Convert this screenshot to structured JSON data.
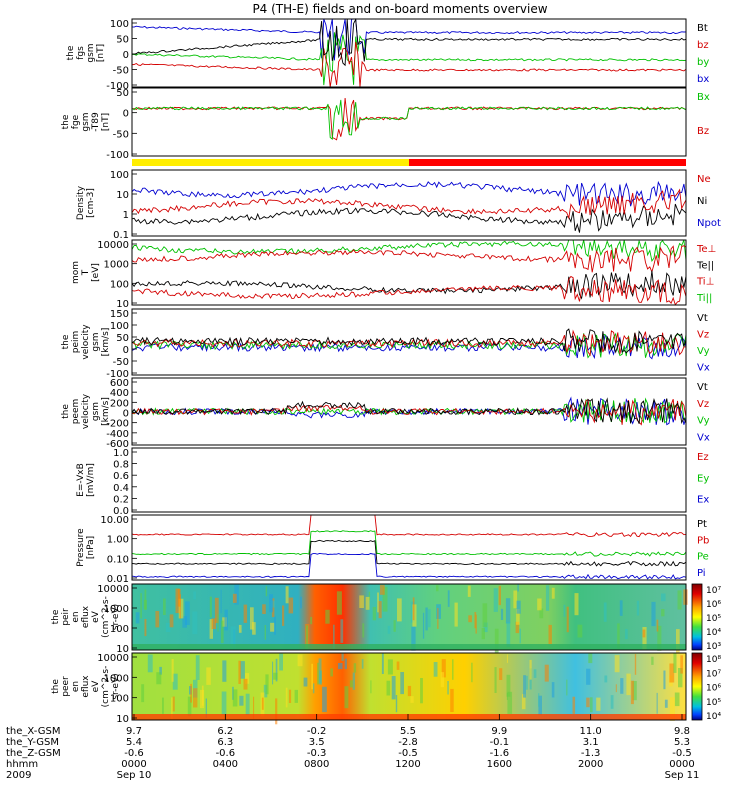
{
  "title": "P4 (TH-E) fields and on-board moments overview",
  "chart_data": [
    {
      "type": "line",
      "ylabel": [
        "the",
        "fgs",
        "gsm",
        "[nT]"
      ],
      "ylim": [
        -100,
        100
      ],
      "yticks": [
        "100",
        "50",
        "0",
        "-50",
        "-100"
      ],
      "legend": [
        {
          "name": "Bt",
          "color": "#000000"
        },
        {
          "name": "bz",
          "color": "#d40000"
        },
        {
          "name": "by",
          "color": "#00c000"
        },
        {
          "name": "bx",
          "color": "#0000d0"
        }
      ]
    },
    {
      "type": "line",
      "ylabel": [
        "the",
        "fge",
        "gsm",
        "-T89",
        "[nT]"
      ],
      "ylim": [
        -120,
        60
      ],
      "yticks": [
        "50",
        "0",
        "-50",
        "-100"
      ],
      "legend": [
        {
          "name": "Bx",
          "color": "#00c000"
        },
        {
          "name": "Bz",
          "color": "#d40000"
        }
      ]
    },
    {
      "type": "line",
      "ylabel": [
        "Density",
        "[cm-3]"
      ],
      "scale": "log",
      "yticks": [
        "100",
        "10",
        "1",
        "0.1"
      ],
      "legend": [
        {
          "name": "Ne",
          "color": "#d40000"
        },
        {
          "name": "Ni",
          "color": "#000000"
        },
        {
          "name": "Npot",
          "color": "#0000d0"
        }
      ]
    },
    {
      "type": "line",
      "ylabel": [
        "mom",
        "T",
        "[eV]"
      ],
      "scale": "log",
      "yticks": [
        "10000",
        "1000",
        "100",
        "10"
      ],
      "legend": [
        {
          "name": "Te⊥",
          "color": "#d40000"
        },
        {
          "name": "Te||",
          "color": "#000000"
        },
        {
          "name": "Ti⊥",
          "color": "#d40000"
        },
        {
          "name": "Ti||",
          "color": "#00c000"
        }
      ]
    },
    {
      "type": "line",
      "ylabel": [
        "the",
        "peim",
        "velocity",
        "gsm",
        "[km/s]"
      ],
      "ylim": [
        -100,
        150
      ],
      "yticks": [
        "150",
        "100",
        "50",
        "0",
        "-50",
        "-100"
      ],
      "legend": [
        {
          "name": "Vt",
          "color": "#000000"
        },
        {
          "name": "Vz",
          "color": "#d40000"
        },
        {
          "name": "Vy",
          "color": "#00c000"
        },
        {
          "name": "Vx",
          "color": "#0000d0"
        }
      ]
    },
    {
      "type": "line",
      "ylabel": [
        "the",
        "peem",
        "velocity",
        "gsm",
        "[km/s]"
      ],
      "ylim": [
        -600,
        600
      ],
      "yticks": [
        "600",
        "400",
        "200",
        "0",
        "-200",
        "-400",
        "-600"
      ],
      "legend": [
        {
          "name": "Vt",
          "color": "#000000"
        },
        {
          "name": "Vz",
          "color": "#d40000"
        },
        {
          "name": "Vy",
          "color": "#00c000"
        },
        {
          "name": "Vx",
          "color": "#0000d0"
        }
      ]
    },
    {
      "type": "line",
      "ylabel": [
        "E=-VxB",
        "[mV/m]"
      ],
      "ylim": [
        0,
        1
      ],
      "yticks": [
        "1.0",
        "0.8",
        "0.6",
        "0.4",
        "0.2",
        "0.0"
      ],
      "legend": [
        {
          "name": "Ez",
          "color": "#d40000"
        },
        {
          "name": "Ey",
          "color": "#00c000"
        },
        {
          "name": "Ex",
          "color": "#0000d0"
        }
      ]
    },
    {
      "type": "line",
      "ylabel": [
        "Pressure",
        "[nPa]"
      ],
      "scale": "log",
      "yticks": [
        "10.00",
        "1.00",
        "0.10",
        "0.01"
      ],
      "legend": [
        {
          "name": "Pt",
          "color": "#000000"
        },
        {
          "name": "Pb",
          "color": "#d40000"
        },
        {
          "name": "Pe",
          "color": "#00c000"
        },
        {
          "name": "Pi",
          "color": "#0000d0"
        }
      ]
    },
    {
      "type": "heatmap",
      "ylabel": [
        "the",
        "peir",
        "en",
        "eflux",
        "eV",
        "(cm^2-s-",
        "sr-eV)"
      ],
      "scale": "log",
      "yticks": [
        "10000",
        "1000",
        "100",
        "10"
      ],
      "colorbar": [
        "10⁷",
        "10⁶",
        "10⁵",
        "10⁴",
        "10³"
      ]
    },
    {
      "type": "heatmap",
      "ylabel": [
        "the",
        "peer",
        "en",
        "eflux",
        "eV",
        "(cm^2-s-",
        "sr-eV)"
      ],
      "scale": "log",
      "yticks": [
        "10000",
        "1000",
        "100",
        "10"
      ],
      "colorbar": [
        "10⁸",
        "10⁷",
        "10⁶",
        "10⁵",
        "10⁴"
      ]
    }
  ],
  "xaxis": {
    "row_labels": [
      "the_X-GSM",
      "the_Y-GSM",
      "the_Z-GSM",
      "hhmm",
      "2009"
    ],
    "columns": [
      [
        "9.7",
        "5.4",
        "-0.6",
        "0000",
        "Sep 10"
      ],
      [
        "6.2",
        "6.3",
        "-0.6",
        "0400",
        ""
      ],
      [
        "-0.2",
        "3.5",
        "-0.3",
        "0800",
        ""
      ],
      [
        "5.5",
        "-2.8",
        "-0.5",
        "1200",
        ""
      ],
      [
        "9.9",
        "-0.1",
        "-1.6",
        "1600",
        ""
      ],
      [
        "11.0",
        "3.1",
        "-1.3",
        "2000",
        ""
      ],
      [
        "9.8",
        "5.3",
        "-0.5",
        "0000",
        "Sep 11"
      ]
    ]
  }
}
